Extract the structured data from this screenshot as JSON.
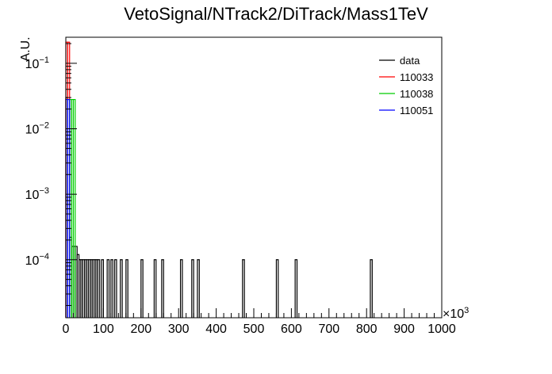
{
  "chart_data": {
    "type": "histogram",
    "title": "VetoSignal/NTrack2/DiTrack/Mass1TeV",
    "ylabel": "A.U.",
    "xlabel": "",
    "x_scale_label": "×10",
    "x_scale_exponent": "3",
    "xlim": [
      0,
      1000
    ],
    "ylim": [
      1.3e-05,
      0.25
    ],
    "y_scale": "log",
    "x_ticks": [
      0,
      100,
      200,
      300,
      400,
      500,
      600,
      700,
      800,
      900,
      1000
    ],
    "x_tick_labels": [
      "0",
      "100",
      "200",
      "300",
      "400",
      "500",
      "600",
      "700",
      "800",
      "900",
      "1000"
    ],
    "y_ticks": [
      {
        "value": 0.1,
        "base": "10",
        "exp": "−1"
      },
      {
        "value": 0.01,
        "base": "10",
        "exp": "−2"
      },
      {
        "value": 0.001,
        "base": "10",
        "exp": "−3"
      },
      {
        "value": 0.0001,
        "base": "10",
        "exp": "−4"
      }
    ],
    "legend_position": "top-right",
    "series": [
      {
        "name": "data",
        "color": "#000000",
        "width": 5,
        "bins": [
          [
            0,
            0.03
          ],
          [
            5,
            0.0004
          ],
          [
            10,
            0.00022
          ],
          [
            15,
            0.00016
          ],
          [
            20,
            0.00016
          ],
          [
            25,
            0.00016
          ],
          [
            30,
            0.00012
          ],
          [
            35,
            0.0001
          ],
          [
            40,
            0.0001
          ],
          [
            45,
            0.0001
          ],
          [
            50,
            0.0001
          ],
          [
            55,
            0.0001
          ],
          [
            60,
            0.0001
          ],
          [
            65,
            0.0001
          ],
          [
            70,
            0.0001
          ],
          [
            75,
            0.0001
          ],
          [
            80,
            0.0001
          ],
          [
            85,
            0.0001
          ],
          [
            95,
            0.0001
          ],
          [
            110,
            0.0001
          ],
          [
            120,
            0.0001
          ],
          [
            130,
            0.0001
          ],
          [
            145,
            0.0001
          ],
          [
            160,
            0.0001
          ],
          [
            200,
            0.0001
          ],
          [
            235,
            0.0001
          ],
          [
            255,
            0.0001
          ],
          [
            305,
            0.0001
          ],
          [
            335,
            0.0001
          ],
          [
            350,
            0.0001
          ],
          [
            470,
            0.0001
          ],
          [
            560,
            0.0001
          ],
          [
            610,
            0.0001
          ],
          [
            810,
            0.0001
          ]
        ]
      },
      {
        "name": "110033",
        "color": "#ff0000",
        "width": 5,
        "bins": [
          [
            0,
            0.21
          ],
          [
            5,
            0.21
          ]
        ]
      },
      {
        "name": "110038",
        "color": "#00cc00",
        "width": 5,
        "bins": [
          [
            5,
            0.028
          ],
          [
            10,
            0.028
          ],
          [
            15,
            0.028
          ],
          [
            20,
            0.028
          ]
        ]
      },
      {
        "name": "110051",
        "color": "#0000ff",
        "width": 5,
        "bins": [
          [
            0,
            0.028
          ],
          [
            5,
            0.028
          ]
        ]
      }
    ]
  }
}
